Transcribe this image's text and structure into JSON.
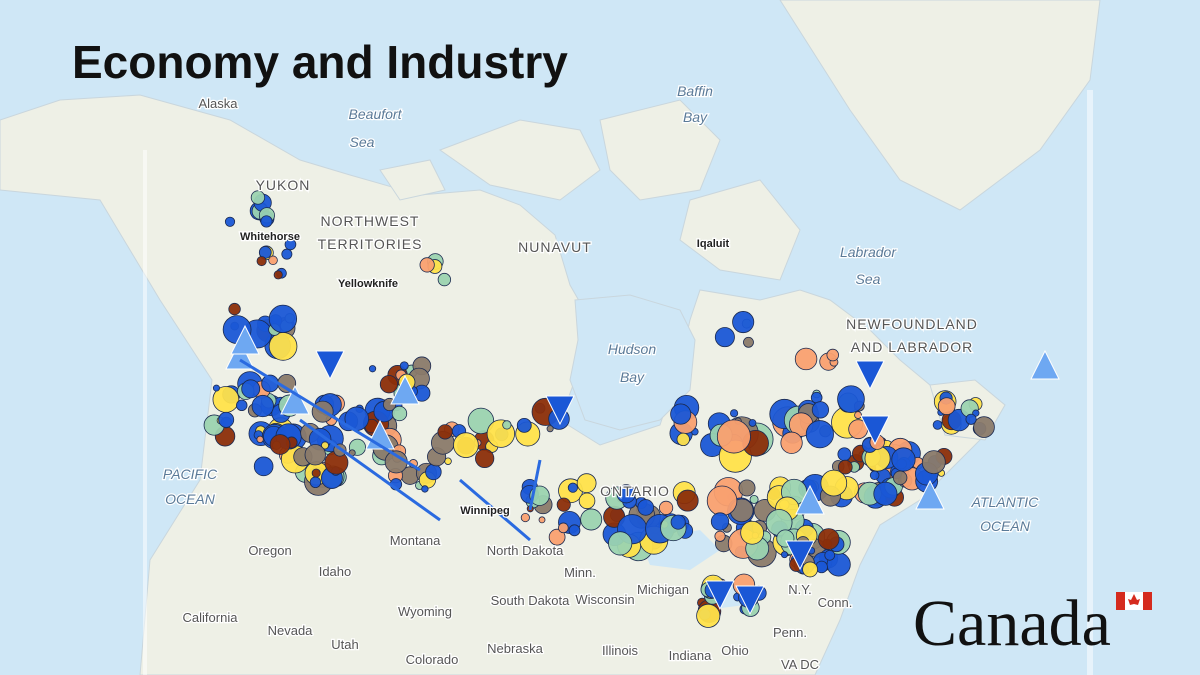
{
  "title": "Economy and Industry",
  "map_labels": [
    "Alaska",
    "Beaufort",
    "Sea",
    "Baffin",
    "Bay",
    "YUKON",
    "NORTHWEST",
    "TERRITORIES",
    "NUNAVUT",
    "Iqaluit",
    "Labrador",
    "Sea",
    "Whitehorse",
    "Yellowknife",
    "NEWFOUNDLAND",
    "AND LABRADOR",
    "Hudson",
    "Bay",
    "PACIFIC",
    "OCEAN",
    "ATLANTIC",
    "OCEAN",
    "ONTARIO",
    "Winnipeg",
    "Montana",
    "North Dakota",
    "Oregon",
    "Idaho",
    "Minn.",
    "South Dakota",
    "Wisconsin",
    "Michigan",
    "Wyoming",
    "California",
    "Nevada",
    "Utah",
    "Nebraska",
    "Illinois",
    "Indiana",
    "Ohio",
    "Colorado",
    "Penn.",
    "N.Y.",
    "Conn.",
    "VA DC"
  ],
  "wordmark": "Canada"
}
